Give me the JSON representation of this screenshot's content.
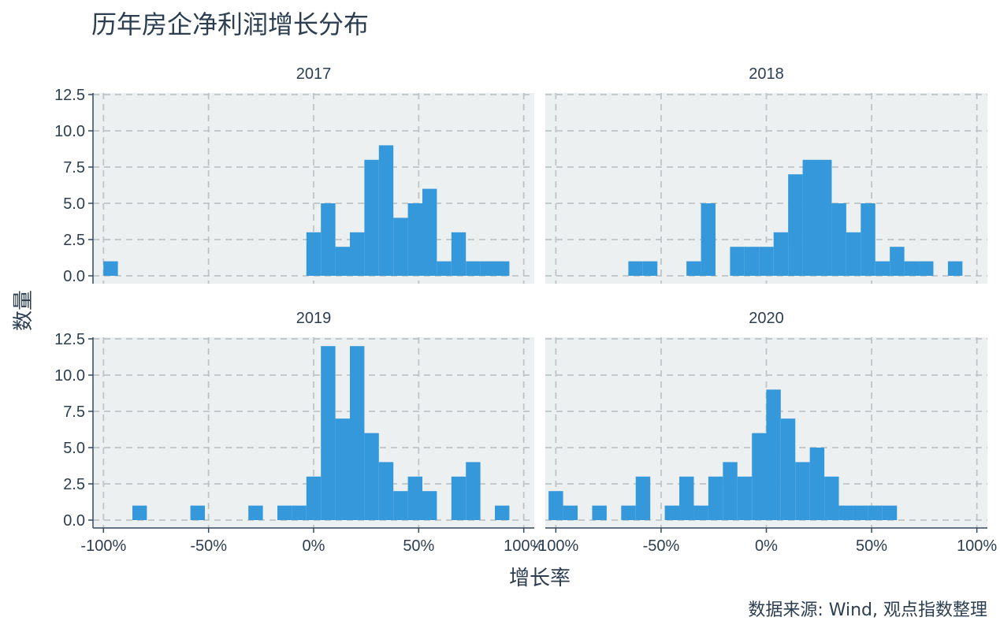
{
  "title": "历年房企净利润增长分布",
  "caption": "数据来源: Wind, 观点指数整理",
  "colors": {
    "bar": "#3498db",
    "panel_bg": "#ecf0f1",
    "grid": "#bfc4c6",
    "axis": "#34495e",
    "text": "#2c3e50"
  },
  "chart_data": {
    "type": "bar",
    "subtype": "faceted histogram",
    "xlabel": "增长率",
    "ylabel": "数量",
    "xlim": [
      -1.05,
      1.05
    ],
    "ylim": [
      0,
      12.5
    ],
    "x_ticks": [
      -1.0,
      -0.5,
      0.0,
      0.5,
      1.0
    ],
    "x_tick_labels": [
      "-100%",
      "-50%",
      "0%",
      "50%",
      "100%"
    ],
    "y_ticks": [
      0,
      2.5,
      5,
      7.5,
      10,
      12.5
    ],
    "y_tick_labels": [
      "0.0",
      "2.5",
      "5.0",
      "7.5",
      "10.0",
      "12.5"
    ],
    "grid": true,
    "bin_width": 0.069,
    "panels": [
      {
        "name": "2017",
        "bins": [
          {
            "x": -0.966,
            "count": 1
          },
          {
            "x": 0.0,
            "count": 3
          },
          {
            "x": 0.069,
            "count": 5
          },
          {
            "x": 0.138,
            "count": 2
          },
          {
            "x": 0.207,
            "count": 3
          },
          {
            "x": 0.276,
            "count": 8
          },
          {
            "x": 0.345,
            "count": 9
          },
          {
            "x": 0.414,
            "count": 4
          },
          {
            "x": 0.483,
            "count": 5
          },
          {
            "x": 0.552,
            "count": 6
          },
          {
            "x": 0.621,
            "count": 1
          },
          {
            "x": 0.69,
            "count": 3
          },
          {
            "x": 0.759,
            "count": 1
          },
          {
            "x": 0.828,
            "count": 1
          },
          {
            "x": 0.897,
            "count": 1
          }
        ]
      },
      {
        "name": "2018",
        "bins": [
          {
            "x": -0.621,
            "count": 1
          },
          {
            "x": -0.552,
            "count": 1
          },
          {
            "x": -0.345,
            "count": 1
          },
          {
            "x": -0.276,
            "count": 5
          },
          {
            "x": -0.138,
            "count": 2
          },
          {
            "x": -0.069,
            "count": 2
          },
          {
            "x": 0.0,
            "count": 2
          },
          {
            "x": 0.069,
            "count": 3
          },
          {
            "x": 0.138,
            "count": 7
          },
          {
            "x": 0.207,
            "count": 8
          },
          {
            "x": 0.276,
            "count": 8
          },
          {
            "x": 0.345,
            "count": 5
          },
          {
            "x": 0.414,
            "count": 3
          },
          {
            "x": 0.483,
            "count": 5
          },
          {
            "x": 0.552,
            "count": 1
          },
          {
            "x": 0.621,
            "count": 2
          },
          {
            "x": 0.69,
            "count": 1
          },
          {
            "x": 0.759,
            "count": 1
          },
          {
            "x": 0.897,
            "count": 1
          }
        ]
      },
      {
        "name": "2019",
        "bins": [
          {
            "x": -0.828,
            "count": 1
          },
          {
            "x": -0.552,
            "count": 1
          },
          {
            "x": -0.276,
            "count": 1
          },
          {
            "x": -0.138,
            "count": 1
          },
          {
            "x": -0.069,
            "count": 1
          },
          {
            "x": 0.0,
            "count": 3
          },
          {
            "x": 0.069,
            "count": 12
          },
          {
            "x": 0.138,
            "count": 7
          },
          {
            "x": 0.207,
            "count": 12
          },
          {
            "x": 0.276,
            "count": 6
          },
          {
            "x": 0.345,
            "count": 4
          },
          {
            "x": 0.414,
            "count": 2
          },
          {
            "x": 0.483,
            "count": 3
          },
          {
            "x": 0.552,
            "count": 2
          },
          {
            "x": 0.69,
            "count": 3
          },
          {
            "x": 0.759,
            "count": 4
          },
          {
            "x": 0.897,
            "count": 1
          }
        ]
      },
      {
        "name": "2020",
        "bins": [
          {
            "x": -1.0,
            "count": 2
          },
          {
            "x": -0.931,
            "count": 1
          },
          {
            "x": -0.793,
            "count": 1
          },
          {
            "x": -0.655,
            "count": 1
          },
          {
            "x": -0.586,
            "count": 3
          },
          {
            "x": -0.448,
            "count": 1
          },
          {
            "x": -0.379,
            "count": 3
          },
          {
            "x": -0.31,
            "count": 1
          },
          {
            "x": -0.241,
            "count": 3
          },
          {
            "x": -0.172,
            "count": 4
          },
          {
            "x": -0.103,
            "count": 3
          },
          {
            "x": -0.034,
            "count": 6
          },
          {
            "x": 0.034,
            "count": 9
          },
          {
            "x": 0.103,
            "count": 7
          },
          {
            "x": 0.172,
            "count": 4
          },
          {
            "x": 0.241,
            "count": 5
          },
          {
            "x": 0.31,
            "count": 3
          },
          {
            "x": 0.379,
            "count": 1
          },
          {
            "x": 0.448,
            "count": 1
          },
          {
            "x": 0.517,
            "count": 1
          },
          {
            "x": 0.586,
            "count": 1
          }
        ]
      }
    ]
  }
}
